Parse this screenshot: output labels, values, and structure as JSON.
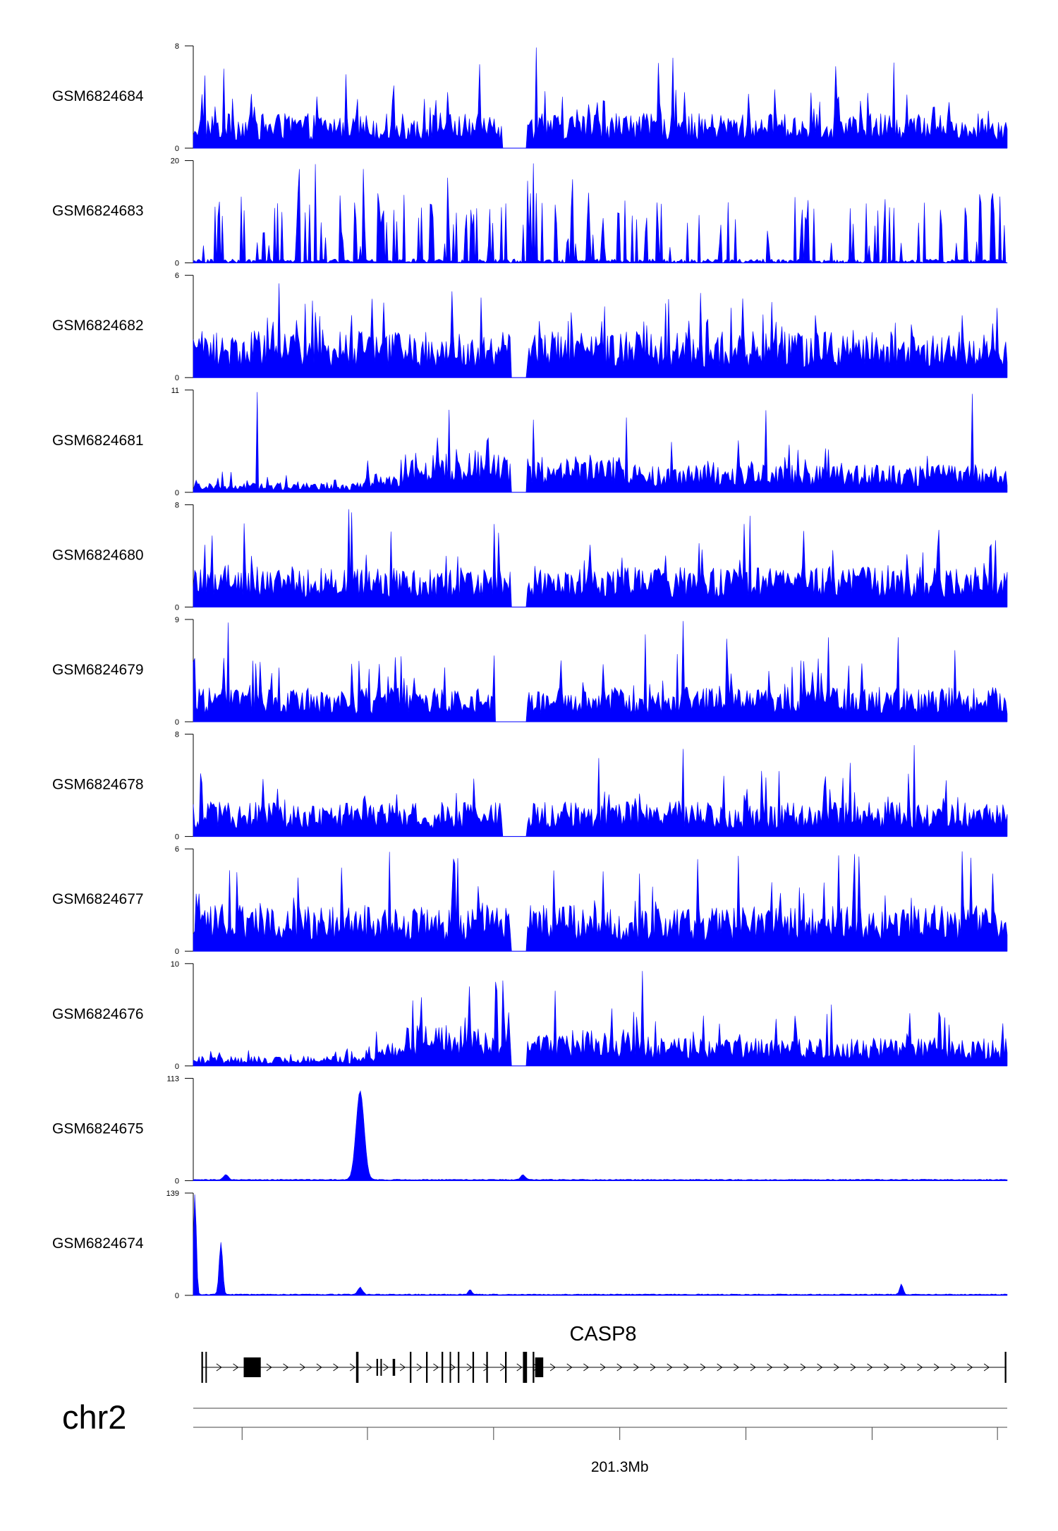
{
  "chart_data": {
    "type": "area",
    "title": "",
    "color": "#0000ff",
    "tracks": [
      {
        "name": "GSM6824684",
        "ymax": "8",
        "ymin": "0",
        "pattern": "noisy",
        "level": 0.3,
        "gaps": [
          0.38,
          0.41
        ]
      },
      {
        "name": "GSM6824683",
        "ymax": "20",
        "ymin": "0",
        "pattern": "sparse",
        "level": 0.25,
        "gaps": []
      },
      {
        "name": "GSM6824682",
        "ymax": "6",
        "ymin": "0",
        "pattern": "noisy",
        "level": 0.4,
        "gaps": [
          0.39,
          0.41
        ]
      },
      {
        "name": "GSM6824681",
        "ymax": "11",
        "ymin": "0",
        "pattern": "broad",
        "level": 0.3,
        "gaps": [
          0.39,
          0.41
        ]
      },
      {
        "name": "GSM6824680",
        "ymax": "8",
        "ymin": "0",
        "pattern": "noisy",
        "level": 0.35,
        "gaps": [
          0.39,
          0.41
        ]
      },
      {
        "name": "GSM6824679",
        "ymax": "9",
        "ymin": "0",
        "pattern": "noisy",
        "level": 0.3,
        "gaps": [
          0.37,
          0.41
        ]
      },
      {
        "name": "GSM6824678",
        "ymax": "8",
        "ymin": "0",
        "pattern": "noisy",
        "level": 0.3,
        "gaps": [
          0.38,
          0.41
        ]
      },
      {
        "name": "GSM6824677",
        "ymax": "6",
        "ymin": "0",
        "pattern": "noisy",
        "level": 0.4,
        "gaps": [
          0.39,
          0.41
        ]
      },
      {
        "name": "GSM6824676",
        "ymax": "10",
        "ymin": "0",
        "pattern": "broad",
        "level": 0.3,
        "gaps": [
          0.39,
          0.41
        ]
      },
      {
        "name": "GSM6824675",
        "ymax": "113",
        "ymin": "0",
        "pattern": "peaks",
        "peaks": [
          [
            0.205,
            0.88,
            0.007
          ],
          [
            0.04,
            0.05,
            0.004
          ],
          [
            0.405,
            0.05,
            0.004
          ]
        ]
      },
      {
        "name": "GSM6824674",
        "ymax": "139",
        "ymin": "0",
        "pattern": "peaks",
        "peaks": [
          [
            0.002,
            1.0,
            0.0025
          ],
          [
            0.034,
            0.52,
            0.003
          ],
          [
            0.87,
            0.1,
            0.003
          ],
          [
            0.205,
            0.07,
            0.004
          ],
          [
            0.34,
            0.05,
            0.003
          ]
        ]
      }
    ],
    "gene": {
      "name": "CASP8",
      "strand": "+",
      "exons": [
        {
          "start": 0.01,
          "end": 0.012,
          "h": 1
        },
        {
          "start": 0.015,
          "end": 0.016,
          "h": 1
        },
        {
          "start": 0.062,
          "end": 0.083,
          "h": 2
        },
        {
          "start": 0.2,
          "end": 0.203,
          "h": 1
        },
        {
          "start": 0.225,
          "end": 0.227,
          "h": 0.7
        },
        {
          "start": 0.23,
          "end": 0.231,
          "h": 0.5
        },
        {
          "start": 0.245,
          "end": 0.248,
          "h": 0.7
        },
        {
          "start": 0.266,
          "end": 0.268,
          "h": 1
        },
        {
          "start": 0.286,
          "end": 0.288,
          "h": 1
        },
        {
          "start": 0.305,
          "end": 0.307,
          "h": 1
        },
        {
          "start": 0.315,
          "end": 0.316,
          "h": 1
        },
        {
          "start": 0.325,
          "end": 0.327,
          "h": 1
        },
        {
          "start": 0.343,
          "end": 0.345,
          "h": 1
        },
        {
          "start": 0.36,
          "end": 0.362,
          "h": 1
        },
        {
          "start": 0.383,
          "end": 0.385,
          "h": 1
        },
        {
          "start": 0.405,
          "end": 0.41,
          "h": 1
        },
        {
          "start": 0.417,
          "end": 0.419,
          "h": 1
        },
        {
          "start": 0.42,
          "end": 0.43,
          "h": 2
        },
        {
          "start": 0.997,
          "end": 0.999,
          "h": 1
        }
      ]
    },
    "chromosome": "chr2",
    "axis": {
      "tick_label": "201.3Mb",
      "tick_label_pos": 0.524,
      "ticks": [
        0.06,
        0.214,
        0.369,
        0.524,
        0.679,
        0.834,
        0.988
      ]
    }
  }
}
